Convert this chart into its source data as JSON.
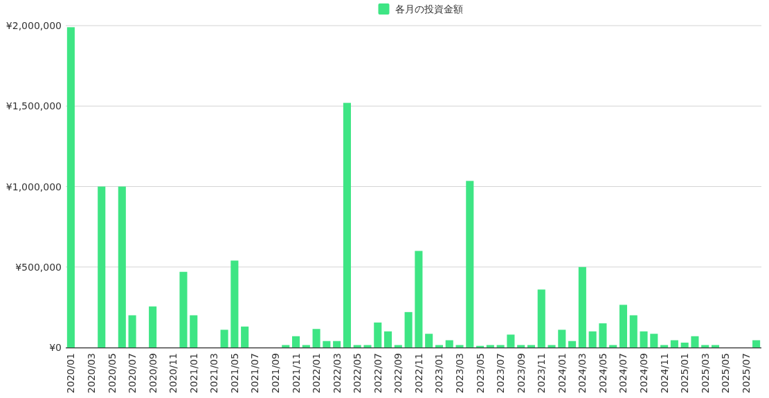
{
  "chart_data": {
    "type": "bar",
    "categories": [
      "2020/01",
      null,
      "2020/03",
      null,
      "2020/05",
      null,
      "2020/07",
      null,
      "2020/09",
      null,
      "2020/11",
      null,
      "2021/01",
      null,
      "2021/03",
      null,
      "2021/05",
      null,
      "2021/07",
      null,
      "2021/09",
      null,
      "2021/11",
      null,
      "2022/01",
      null,
      "2022/03",
      null,
      "2022/05",
      null,
      "2022/07",
      null,
      "2022/09",
      null,
      "2022/11",
      null,
      "2023/01",
      null,
      "2023/03",
      null,
      "2023/05",
      null,
      "2023/07",
      null,
      "2023/09",
      null,
      "2023/11",
      null,
      "2024/01",
      null,
      "2024/03",
      null,
      "2024/05",
      null,
      "2024/07",
      null,
      "2024/09",
      null,
      "2024/11",
      null,
      "2025/01",
      null,
      "2025/03",
      null,
      "2025/05",
      null,
      "2025/07",
      null
    ],
    "series": [
      {
        "name": "各月の投資金額",
        "color": "#3ee584",
        "values": [
          1990000,
          0,
          0,
          1000000,
          0,
          1000000,
          200000,
          0,
          255000,
          0,
          0,
          470000,
          200000,
          0,
          0,
          110000,
          540000,
          130000,
          0,
          0,
          0,
          15000,
          70000,
          15000,
          115000,
          40000,
          40000,
          1520000,
          15000,
          15000,
          155000,
          100000,
          15000,
          220000,
          600000,
          85000,
          15000,
          45000,
          15000,
          1035000,
          10000,
          15000,
          15000,
          80000,
          15000,
          15000,
          360000,
          15000,
          110000,
          40000,
          500000,
          100000,
          150000,
          15000,
          265000,
          200000,
          100000,
          85000,
          15000,
          45000,
          30000,
          70000,
          15000,
          15000,
          0,
          0,
          0,
          45000
        ]
      }
    ],
    "ylim": [
      0,
      2000000
    ],
    "yticks": [
      {
        "value": 0,
        "label": "¥0"
      },
      {
        "value": 500000,
        "label": "¥500,000"
      },
      {
        "value": 1000000,
        "label": "¥1,000,000"
      },
      {
        "value": 1500000,
        "label": "¥1,500,000"
      },
      {
        "value": 2000000,
        "label": "¥2,000,000"
      }
    ],
    "grid": "y",
    "legend": "top"
  }
}
